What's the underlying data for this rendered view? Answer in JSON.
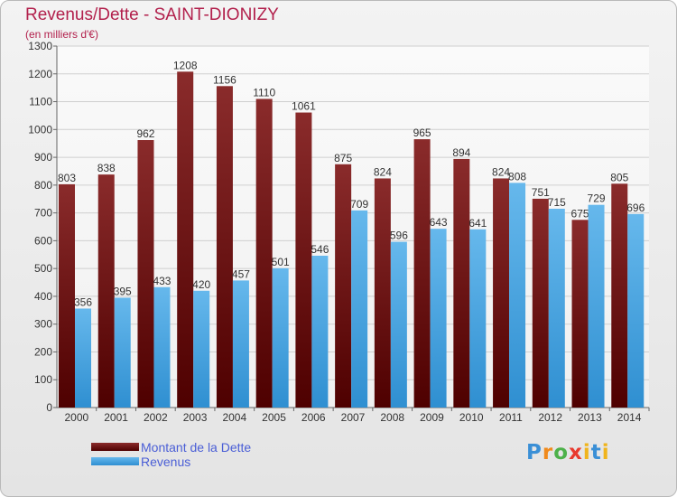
{
  "header": {
    "title": "Revenus/Dette - SAINT-DIONIZY",
    "subtitle": "(en milliers d'€)"
  },
  "legend": {
    "debt_label": "Montant de la Dette",
    "revenue_label": "Revenus"
  },
  "logo": {
    "text": "Proxiti"
  },
  "colors": {
    "title": "#b2204c",
    "debt_top": "#8a2b2b",
    "debt_bottom": "#4e0000",
    "revenue_top": "#66b8ec",
    "revenue_bottom": "#2f8fd1",
    "legend_text": "#4a5ed6"
  },
  "chart_data": {
    "type": "bar",
    "categories": [
      "2000",
      "2001",
      "2002",
      "2003",
      "2004",
      "2005",
      "2006",
      "2007",
      "2008",
      "2009",
      "2010",
      "2011",
      "2012",
      "2013",
      "2014"
    ],
    "series": [
      {
        "name": "Montant de la Dette",
        "values": [
          803,
          838,
          962,
          1208,
          1156,
          1110,
          1061,
          875,
          824,
          965,
          894,
          824,
          751,
          675,
          805
        ]
      },
      {
        "name": "Revenus",
        "values": [
          356,
          395,
          433,
          420,
          457,
          501,
          546,
          709,
          596,
          643,
          641,
          808,
          715,
          729,
          696
        ]
      }
    ],
    "ylim": [
      0,
      1300
    ],
    "yticks": [
      0,
      100,
      200,
      300,
      400,
      500,
      600,
      700,
      800,
      900,
      1000,
      1100,
      1200,
      1300
    ],
    "grid": true,
    "legend_position": "bottom-left"
  }
}
